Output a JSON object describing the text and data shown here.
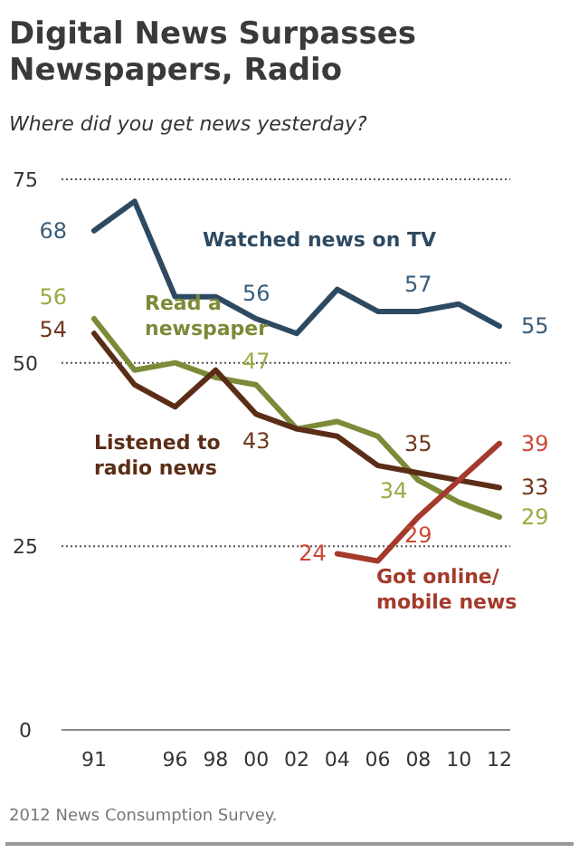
{
  "chart_data": {
    "type": "line",
    "title": "Digital News Surpasses Newspapers, Radio",
    "subtitle": "Where did you get news yesterday?",
    "categories": [
      "91",
      null,
      "96",
      "98",
      "00",
      "02",
      "04",
      "06",
      "08",
      "10",
      "12"
    ],
    "series": [
      {
        "name": "Watched news on TV",
        "color": "#2e4a62",
        "values": [
          68,
          72,
          59,
          59,
          56,
          54,
          60,
          57,
          57,
          58,
          55
        ],
        "value_labels": [
          "68",
          null,
          null,
          null,
          "56",
          null,
          null,
          null,
          "57",
          null,
          "55"
        ]
      },
      {
        "name": "Read a newspaper",
        "color": "#7d8a38",
        "values": [
          56,
          49,
          50,
          48,
          47,
          41,
          42,
          40,
          34,
          31,
          29
        ],
        "value_labels": [
          "56",
          null,
          null,
          null,
          "47",
          null,
          null,
          null,
          "34",
          null,
          "29"
        ]
      },
      {
        "name": "Listened to radio news",
        "color": "#5b2d17",
        "values": [
          54,
          47,
          44,
          49,
          43,
          41,
          40,
          36,
          35,
          34,
          33
        ],
        "value_labels": [
          "54",
          null,
          null,
          null,
          "43",
          null,
          null,
          null,
          "35",
          null,
          "33"
        ]
      },
      {
        "name": "Got online/ mobile news",
        "color": "#a43a2b",
        "values": [
          null,
          null,
          null,
          null,
          null,
          null,
          24,
          23,
          29,
          34,
          39
        ],
        "value_labels": [
          null,
          null,
          null,
          null,
          null,
          null,
          "24",
          null,
          "29",
          null,
          "39"
        ]
      }
    ],
    "ylim": [
      0,
      75
    ],
    "yticks": [
      0,
      25,
      50,
      75
    ],
    "grid": "y",
    "marker": "none",
    "line_style": "solid",
    "annotations": [
      "2012 News Consumption Survey."
    ]
  }
}
